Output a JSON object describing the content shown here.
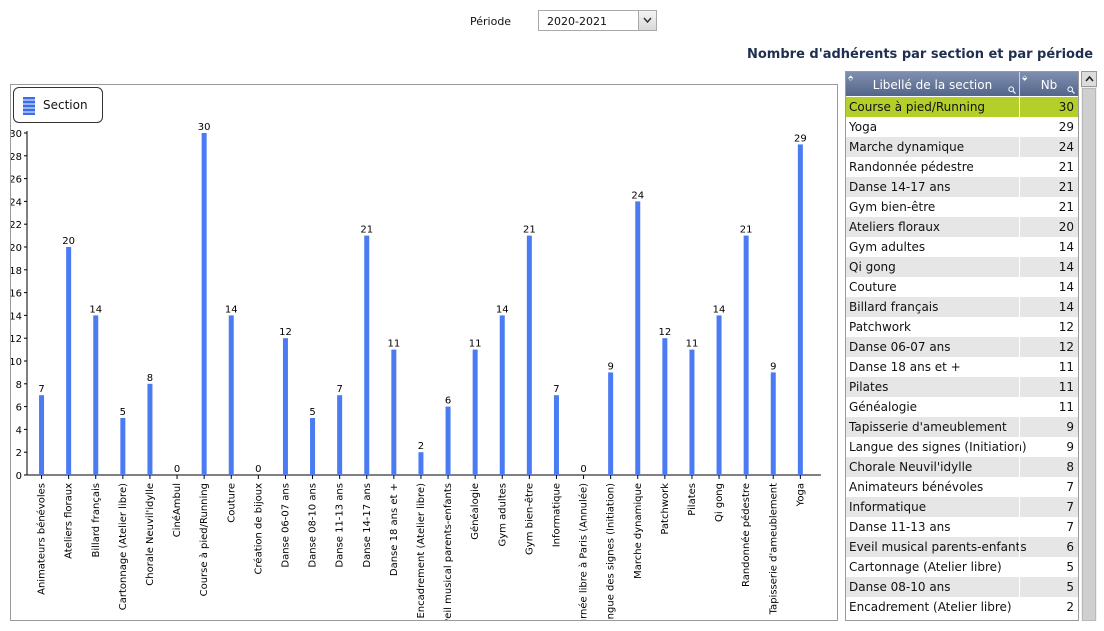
{
  "filter": {
    "label": "Période",
    "value": "2020-2021"
  },
  "title": "Nombre d'adhérents par section et par période",
  "legend": {
    "label": "Section"
  },
  "colors": {
    "bar": "#4a7bf2",
    "selected_row": "#b5cf2a",
    "header": "#5d6f95"
  },
  "icons": {
    "dropdown": "chevron-down-icon",
    "sort": "sort-icon",
    "search": "search-icon",
    "scroll_up": "chevron-up-icon"
  },
  "table": {
    "headers": {
      "label": "Libellé de la section",
      "count": "Nb"
    },
    "rows": [
      {
        "label": "Course à pied/Running",
        "value": 30
      },
      {
        "label": "Yoga",
        "value": 29
      },
      {
        "label": "Marche dynamique",
        "value": 24
      },
      {
        "label": "Randonnée pédestre",
        "value": 21
      },
      {
        "label": "Danse 14-17 ans",
        "value": 21
      },
      {
        "label": "Gym bien-être",
        "value": 21
      },
      {
        "label": "Ateliers floraux",
        "value": 20
      },
      {
        "label": "Gym adultes",
        "value": 14
      },
      {
        "label": "Qi gong",
        "value": 14
      },
      {
        "label": "Couture",
        "value": 14
      },
      {
        "label": "Billard français",
        "value": 14
      },
      {
        "label": "Patchwork",
        "value": 12
      },
      {
        "label": "Danse 06-07 ans",
        "value": 12
      },
      {
        "label": "Danse 18 ans et +",
        "value": 11
      },
      {
        "label": "Pilates",
        "value": 11
      },
      {
        "label": "Généalogie",
        "value": 11
      },
      {
        "label": "Tapisserie d'ameublement",
        "value": 9
      },
      {
        "label": "Langue des signes (Initiation)",
        "value": 9
      },
      {
        "label": "Chorale Neuvil'idylle",
        "value": 8
      },
      {
        "label": "Animateurs bénévoles",
        "value": 7
      },
      {
        "label": "Informatique",
        "value": 7
      },
      {
        "label": "Danse 11-13 ans",
        "value": 7
      },
      {
        "label": "Eveil musical parents-enfants",
        "value": 6
      },
      {
        "label": "Cartonnage (Atelier libre)",
        "value": 5
      },
      {
        "label": "Danse 08-10 ans",
        "value": 5
      },
      {
        "label": "Encadrement (Atelier libre)",
        "value": 2
      }
    ]
  },
  "chart_data": {
    "type": "bar",
    "series": [
      {
        "name": "Section"
      }
    ],
    "categories": [
      "Animateurs bénévoles",
      "Ateliers floraux",
      "Billard français",
      "Cartonnage (Atelier libre)",
      "Chorale Neuvil'idylle",
      "CinéAmbul",
      "Course à pied/Running",
      "Couture",
      "Création de bijoux",
      "Danse 06-07 ans",
      "Danse 08-10 ans",
      "Danse 11-13 ans",
      "Danse 14-17 ans",
      "Danse 18 ans et +",
      "Encadrement (Atelier libre)",
      "Eveil musical parents-enfants",
      "Généalogie",
      "Gym adultes",
      "Gym bien-être",
      "Informatique",
      "Journée libre à Paris (Annulée)",
      "Langue des signes (Initiation)",
      "Marche dynamique",
      "Patchwork",
      "Pilates",
      "Qi gong",
      "Randonnée pédestre",
      "Tapisserie d'ameublement",
      "Yoga"
    ],
    "values": [
      7,
      20,
      14,
      5,
      8,
      0,
      30,
      14,
      0,
      12,
      5,
      7,
      21,
      11,
      2,
      6,
      11,
      14,
      21,
      7,
      0,
      9,
      24,
      12,
      11,
      14,
      21,
      9,
      29
    ],
    "ylim": [
      0,
      30
    ],
    "yticks": [
      0,
      2,
      4,
      6,
      8,
      10,
      12,
      14,
      16,
      18,
      20,
      22,
      24,
      26,
      28,
      30
    ],
    "legend_position": "top-left",
    "grid": false
  }
}
